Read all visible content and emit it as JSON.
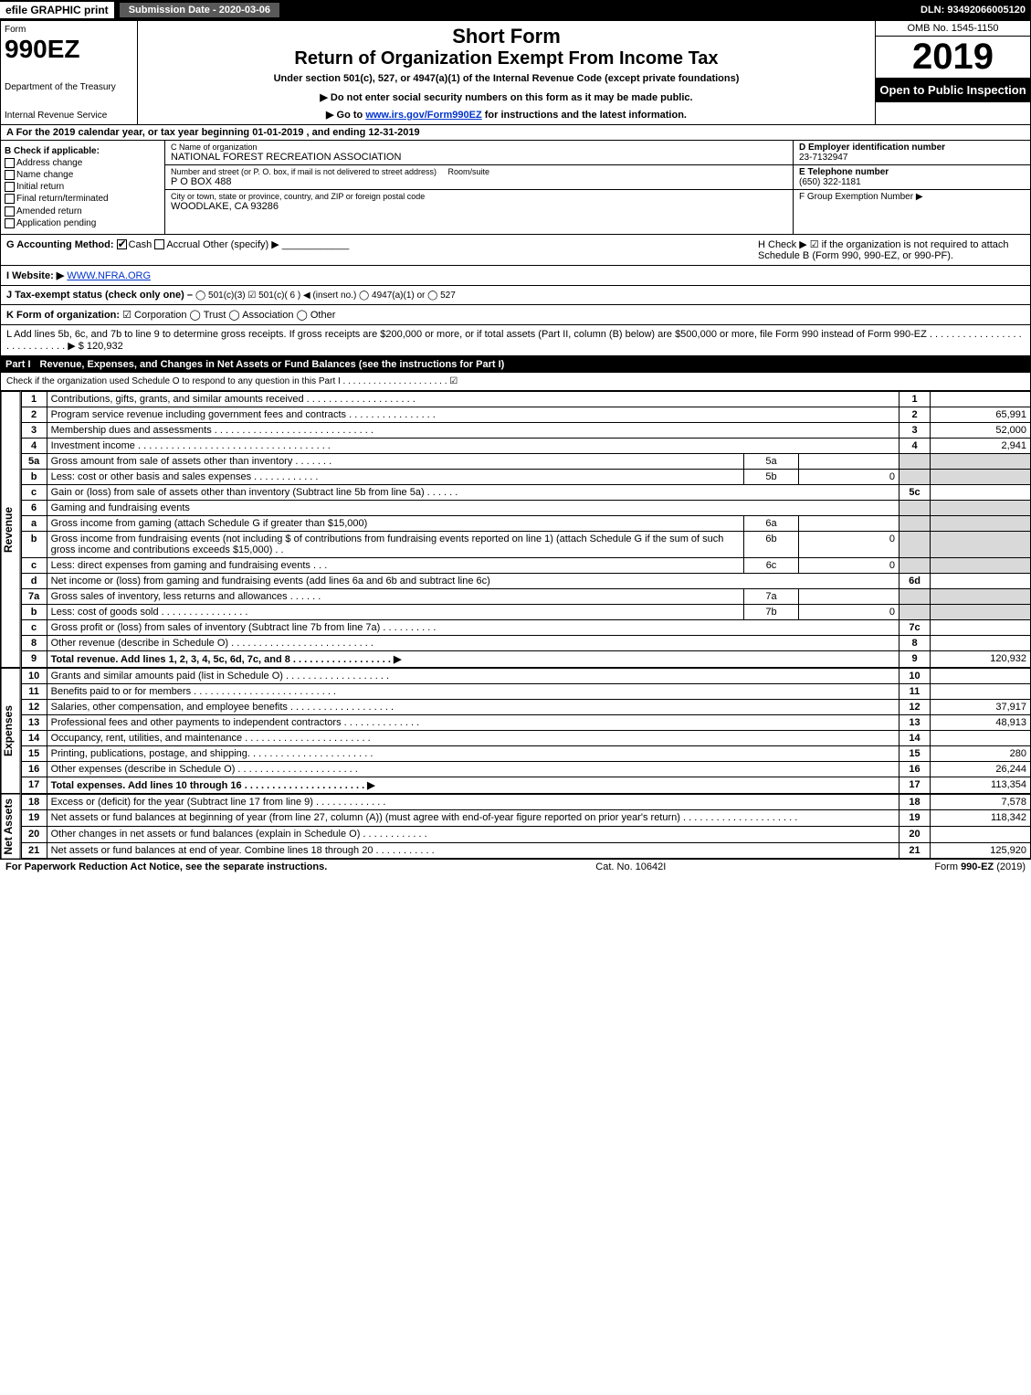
{
  "topbar": {
    "efile": "efile GRAPHIC print",
    "submission": "Submission Date - 2020-03-06",
    "dln": "DLN: 93492066005120"
  },
  "header": {
    "form_label": "Form",
    "form_num": "990EZ",
    "dept": "Department of the Treasury",
    "irs": "Internal Revenue Service",
    "short_form": "Short Form",
    "return_title": "Return of Organization Exempt From Income Tax",
    "under": "Under section 501(c), 527, or 4947(a)(1) of the Internal Revenue Code (except private foundations)",
    "notice": "▶ Do not enter social security numbers on this form as it may be made public.",
    "goto_pre": "▶ Go to ",
    "goto_link": "www.irs.gov/Form990EZ",
    "goto_post": " for instructions and the latest information.",
    "omb": "OMB No. 1545-1150",
    "year": "2019",
    "open": "Open to Public Inspection"
  },
  "row_a": "A For the 2019 calendar year, or tax year beginning 01-01-2019 , and ending 12-31-2019",
  "box_b": {
    "title": "B Check if applicable:",
    "items": [
      "Address change",
      "Name change",
      "Initial return",
      "Final return/terminated",
      "Amended return",
      "Application pending"
    ]
  },
  "box_c": {
    "label_name": "C Name of organization",
    "name": "NATIONAL FOREST RECREATION ASSOCIATION",
    "label_addr": "Number and street (or P. O. box, if mail is not delivered to street address)",
    "room": "Room/suite",
    "addr": "P O BOX 488",
    "label_city": "City or town, state or province, country, and ZIP or foreign postal code",
    "city": "WOODLAKE, CA  93286"
  },
  "box_d": {
    "label": "D Employer identification number",
    "val": "23-7132947"
  },
  "box_e": {
    "label": "E Telephone number",
    "val": "(650) 322-1181"
  },
  "box_f": {
    "label": "F Group Exemption Number ▶",
    "val": ""
  },
  "box_g": {
    "label": "G Accounting Method:",
    "cash": "Cash",
    "accrual": "Accrual",
    "other": "Other (specify) ▶"
  },
  "box_h": {
    "text": "H Check ▶ ☑ if the organization is not required to attach Schedule B (Form 990, 990-EZ, or 990-PF)."
  },
  "box_i": {
    "label": "I Website: ▶",
    "val": "WWW.NFRA.ORG"
  },
  "box_j": {
    "label": "J Tax-exempt status (check only one) –",
    "opts": "◯ 501(c)(3)  ☑ 501(c)( 6 ) ◀ (insert no.)  ◯ 4947(a)(1) or  ◯ 527"
  },
  "box_k": {
    "label": "K Form of organization:",
    "opts": "☑ Corporation  ◯ Trust  ◯ Association  ◯ Other"
  },
  "box_l": {
    "text": "L Add lines 5b, 6c, and 7b to line 9 to determine gross receipts. If gross receipts are $200,000 or more, or if total assets (Part II, column (B) below) are $500,000 or more, file Form 990 instead of Form 990-EZ . . . . . . . . . . . . . . . . . . . . . . . . . . . . ▶ $ 120,932"
  },
  "part1": {
    "label": "Part I",
    "title": "Revenue, Expenses, and Changes in Net Assets or Fund Balances (see the instructions for Part I)",
    "check": "Check if the organization used Schedule O to respond to any question in this Part I . . . . . . . . . . . . . . . . . . . . . ☑"
  },
  "sections": {
    "rev": "Revenue",
    "exp": "Expenses",
    "na": "Net Assets"
  },
  "lines": {
    "l1": {
      "n": "1",
      "t": "Contributions, gifts, grants, and similar amounts received . . . . . . . . . . . . . . . . . . . .",
      "r": "1",
      "a": ""
    },
    "l2": {
      "n": "2",
      "t": "Program service revenue including government fees and contracts . . . . . . . . . . . . . . . .",
      "r": "2",
      "a": "65,991"
    },
    "l3": {
      "n": "3",
      "t": "Membership dues and assessments . . . . . . . . . . . . . . . . . . . . . . . . . . . . .",
      "r": "3",
      "a": "52,000"
    },
    "l4": {
      "n": "4",
      "t": "Investment income . . . . . . . . . . . . . . . . . . . . . . . . . . . . . . . . . . .",
      "r": "4",
      "a": "2,941"
    },
    "l5a": {
      "n": "5a",
      "t": "Gross amount from sale of assets other than inventory . . . . . . .",
      "s": "5a",
      "sa": ""
    },
    "l5b": {
      "n": "b",
      "t": "Less: cost or other basis and sales expenses . . . . . . . . . . . .",
      "s": "5b",
      "sa": "0"
    },
    "l5c": {
      "n": "c",
      "t": "Gain or (loss) from sale of assets other than inventory (Subtract line 5b from line 5a) . . . . . .",
      "r": "5c",
      "a": ""
    },
    "l6": {
      "n": "6",
      "t": "Gaming and fundraising events"
    },
    "l6a": {
      "n": "a",
      "t": "Gross income from gaming (attach Schedule G if greater than $15,000)",
      "s": "6a",
      "sa": ""
    },
    "l6b": {
      "n": "b",
      "t": "Gross income from fundraising events (not including $                       of contributions from fundraising events reported on line 1) (attach Schedule G if the sum of such gross income and contributions exceeds $15,000)    . .",
      "s": "6b",
      "sa": "0"
    },
    "l6c": {
      "n": "c",
      "t": "Less: direct expenses from gaming and fundraising events     . . .",
      "s": "6c",
      "sa": "0"
    },
    "l6d": {
      "n": "d",
      "t": "Net income or (loss) from gaming and fundraising events (add lines 6a and 6b and subtract line 6c)",
      "r": "6d",
      "a": ""
    },
    "l7a": {
      "n": "7a",
      "t": "Gross sales of inventory, less returns and allowances . . . . . .",
      "s": "7a",
      "sa": ""
    },
    "l7b": {
      "n": "b",
      "t": "Less: cost of goods sold       . . . . . . . . . . . . . . . .",
      "s": "7b",
      "sa": "0"
    },
    "l7c": {
      "n": "c",
      "t": "Gross profit or (loss) from sales of inventory (Subtract line 7b from line 7a) . . . . . . . . . .",
      "r": "7c",
      "a": ""
    },
    "l8": {
      "n": "8",
      "t": "Other revenue (describe in Schedule O) . . . . . . . . . . . . . . . . . . . . . . . . . .",
      "r": "8",
      "a": ""
    },
    "l9": {
      "n": "9",
      "t": "Total revenue. Add lines 1, 2, 3, 4, 5c, 6d, 7c, and 8  . . . . . . . . . . . . . . . . . .  ▶",
      "r": "9",
      "a": "120,932"
    },
    "l10": {
      "n": "10",
      "t": "Grants and similar amounts paid (list in Schedule O) . . . . . . . . . . . . . . . . . . .",
      "r": "10",
      "a": ""
    },
    "l11": {
      "n": "11",
      "t": "Benefits paid to or for members    . . . . . . . . . . . . . . . . . . . . . . . . . .",
      "r": "11",
      "a": ""
    },
    "l12": {
      "n": "12",
      "t": "Salaries, other compensation, and employee benefits . . . . . . . . . . . . . . . . . . .",
      "r": "12",
      "a": "37,917"
    },
    "l13": {
      "n": "13",
      "t": "Professional fees and other payments to independent contractors . . . . . . . . . . . . . .",
      "r": "13",
      "a": "48,913"
    },
    "l14": {
      "n": "14",
      "t": "Occupancy, rent, utilities, and maintenance . . . . . . . . . . . . . . . . . . . . . . .",
      "r": "14",
      "a": ""
    },
    "l15": {
      "n": "15",
      "t": "Printing, publications, postage, and shipping. . . . . . . . . . . . . . . . . . . . . . .",
      "r": "15",
      "a": "280"
    },
    "l16": {
      "n": "16",
      "t": "Other expenses (describe in Schedule O)    . . . . . . . . . . . . . . . . . . . . . .",
      "r": "16",
      "a": "26,244"
    },
    "l17": {
      "n": "17",
      "t": "Total expenses. Add lines 10 through 16   . . . . . . . . . . . . . . . . . . . . . .  ▶",
      "r": "17",
      "a": "113,354"
    },
    "l18": {
      "n": "18",
      "t": "Excess or (deficit) for the year (Subtract line 17 from line 9)      . . . . . . . . . . . . .",
      "r": "18",
      "a": "7,578"
    },
    "l19": {
      "n": "19",
      "t": "Net assets or fund balances at beginning of year (from line 27, column (A)) (must agree with end-of-year figure reported on prior year's return) . . . . . . . . . . . . . . . . . . . . .",
      "r": "19",
      "a": "118,342"
    },
    "l20": {
      "n": "20",
      "t": "Other changes in net assets or fund balances (explain in Schedule O) . . . . . . . . . . . .",
      "r": "20",
      "a": ""
    },
    "l21": {
      "n": "21",
      "t": "Net assets or fund balances at end of year. Combine lines 18 through 20 . . . . . . . . . . .",
      "r": "21",
      "a": "125,920"
    }
  },
  "footer": {
    "left": "For Paperwork Reduction Act Notice, see the separate instructions.",
    "mid": "Cat. No. 10642I",
    "right_pre": "Form ",
    "right_b": "990-EZ",
    "right_post": " (2019)"
  }
}
